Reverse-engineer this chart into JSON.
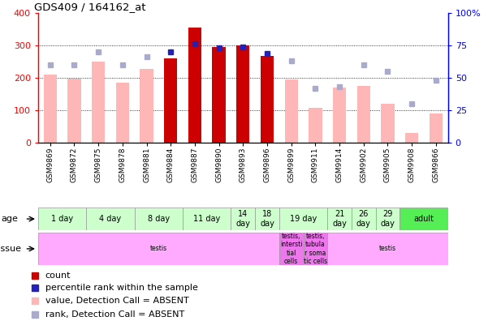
{
  "title": "GDS409 / 164162_at",
  "samples": [
    "GSM9869",
    "GSM9872",
    "GSM9875",
    "GSM9878",
    "GSM9881",
    "GSM9884",
    "GSM9887",
    "GSM9890",
    "GSM9893",
    "GSM9896",
    "GSM9899",
    "GSM9911",
    "GSM9914",
    "GSM9902",
    "GSM9905",
    "GSM9908",
    "GSM9866"
  ],
  "count_values": [
    null,
    null,
    null,
    null,
    null,
    260,
    355,
    295,
    300,
    267,
    null,
    null,
    null,
    null,
    null,
    null,
    null
  ],
  "count_ranks": [
    null,
    null,
    null,
    null,
    null,
    70,
    76,
    73,
    74,
    69,
    null,
    null,
    null,
    null,
    null,
    null,
    null
  ],
  "absent_values": [
    210,
    197,
    250,
    185,
    227,
    null,
    null,
    null,
    null,
    null,
    195,
    108,
    170,
    175,
    120,
    30,
    90
  ],
  "absent_ranks": [
    60,
    60,
    70,
    60,
    66,
    null,
    null,
    null,
    null,
    null,
    63,
    42,
    43,
    60,
    55,
    30,
    48
  ],
  "ylim_left": [
    0,
    400
  ],
  "ylim_right": [
    0,
    100
  ],
  "yticks_left": [
    0,
    100,
    200,
    300,
    400
  ],
  "yticks_right": [
    0,
    25,
    50,
    75,
    100
  ],
  "grid_vals": [
    100,
    200,
    300
  ],
  "bar_color_count": "#CC0000",
  "bar_color_absent": "#FFB6B6",
  "dot_color_count": "#2222BB",
  "dot_color_absent": "#AAAACC",
  "age_groups": [
    {
      "label": "1 day",
      "start": 0,
      "end": 2,
      "color": "#CCFFCC"
    },
    {
      "label": "4 day",
      "start": 2,
      "end": 4,
      "color": "#CCFFCC"
    },
    {
      "label": "8 day",
      "start": 4,
      "end": 6,
      "color": "#CCFFCC"
    },
    {
      "label": "11 day",
      "start": 6,
      "end": 8,
      "color": "#CCFFCC"
    },
    {
      "label": "14\nday",
      "start": 8,
      "end": 9,
      "color": "#CCFFCC"
    },
    {
      "label": "18\nday",
      "start": 9,
      "end": 10,
      "color": "#CCFFCC"
    },
    {
      "label": "19 day",
      "start": 10,
      "end": 12,
      "color": "#CCFFCC"
    },
    {
      "label": "21\nday",
      "start": 12,
      "end": 13,
      "color": "#CCFFCC"
    },
    {
      "label": "26\nday",
      "start": 13,
      "end": 14,
      "color": "#CCFFCC"
    },
    {
      "label": "29\nday",
      "start": 14,
      "end": 15,
      "color": "#CCFFCC"
    },
    {
      "label": "adult",
      "start": 15,
      "end": 17,
      "color": "#55EE55"
    }
  ],
  "tissue_groups": [
    {
      "label": "testis",
      "start": 0,
      "end": 10,
      "color": "#FFAAFF"
    },
    {
      "label": "testis,\nintersti\ntial\ncells",
      "start": 10,
      "end": 11,
      "color": "#EE77EE"
    },
    {
      "label": "testis,\ntubula\nr soma\ntic cells",
      "start": 11,
      "end": 12,
      "color": "#EE77EE"
    },
    {
      "label": "testis",
      "start": 12,
      "end": 17,
      "color": "#FFAAFF"
    }
  ],
  "legend_items": [
    {
      "label": "count",
      "color": "#CC0000"
    },
    {
      "label": "percentile rank within the sample",
      "color": "#2222BB"
    },
    {
      "label": "value, Detection Call = ABSENT",
      "color": "#FFB6B6"
    },
    {
      "label": "rank, Detection Call = ABSENT",
      "color": "#AAAACC"
    }
  ]
}
